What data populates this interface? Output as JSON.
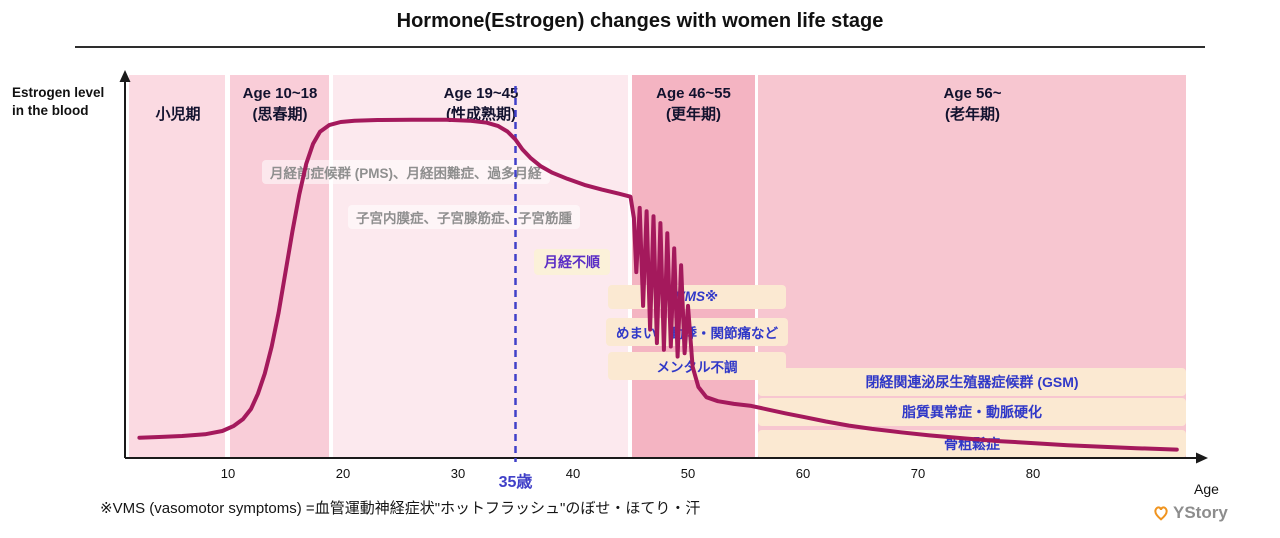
{
  "footnote": "※VMS (vasomotor symptoms) =血管運動神経症状\"ホットフラッシュ\"のぼせ・ほてり・汗",
  "logo": {
    "text": "YStory",
    "icon": "heart-icon",
    "color": "#F0941F",
    "text_color": "#8D8D8D"
  },
  "chart_data": {
    "type": "line",
    "title": "Hormone(Estrogen) changes with women life stage",
    "xlabel": "Age",
    "ylabel": "Estrogen level in the blood",
    "ylabel_lines": [
      "Estrogen level",
      "in the blood"
    ],
    "x_ticks": [
      10,
      20,
      30,
      40,
      50,
      60,
      70,
      80
    ],
    "x_range": [
      0,
      93
    ],
    "grid": false,
    "curve_color": "#A4195C",
    "marker": {
      "age": 35,
      "label": "35歳",
      "color": "#4040C8"
    },
    "stages": [
      {
        "label": "小児期",
        "sublabel": "",
        "age_range": [
          0,
          10
        ],
        "band_color": "#FBDAE2"
      },
      {
        "label": "Age 10~18",
        "sublabel": "(思春期)",
        "age_range": [
          10,
          18
        ],
        "band_color": "#F9CDD8"
      },
      {
        "label": "Age 19~45",
        "sublabel": "(性成熟期)",
        "age_range": [
          19,
          45
        ],
        "band_color": "#FCE9EE"
      },
      {
        "label": "Age 46~55",
        "sublabel": "(更年期)",
        "age_range": [
          46,
          55
        ],
        "band_color": "#F4B4C2"
      },
      {
        "label": "Age 56~",
        "sublabel": "(老年期)",
        "age_range": [
          56,
          93
        ],
        "band_color": "#F7C6D0"
      }
    ],
    "series": [
      {
        "name": "Estrogen level in the blood",
        "unit": "relative level (0-100, est.)",
        "points": [
          [
            2.3,
            6
          ],
          [
            4,
            6.2
          ],
          [
            6,
            6.5
          ],
          [
            8,
            7
          ],
          [
            9.5,
            8
          ],
          [
            10.5,
            9.5
          ],
          [
            11.3,
            11.5
          ],
          [
            12,
            14.5
          ],
          [
            12.6,
            19
          ],
          [
            13.2,
            25
          ],
          [
            13.8,
            33
          ],
          [
            14.4,
            43
          ],
          [
            15,
            55
          ],
          [
            15.6,
            67
          ],
          [
            16.2,
            78
          ],
          [
            16.8,
            87
          ],
          [
            17.4,
            93
          ],
          [
            18,
            96.5
          ],
          [
            18.8,
            98.5
          ],
          [
            19.8,
            99.4
          ],
          [
            21,
            99.8
          ],
          [
            23,
            100
          ],
          [
            26,
            100.1
          ],
          [
            29,
            100.1
          ],
          [
            31,
            99.8
          ],
          [
            32.5,
            99.2
          ],
          [
            33.5,
            98.2
          ],
          [
            34.3,
            96.6
          ],
          [
            35,
            94.2
          ],
          [
            35.6,
            91.3
          ],
          [
            36.3,
            88.8
          ],
          [
            37.2,
            86.3
          ],
          [
            38.2,
            84.4
          ],
          [
            39.5,
            82.6
          ],
          [
            41,
            80.8
          ],
          [
            42.5,
            79.4
          ],
          [
            44,
            78.2
          ],
          [
            45,
            77.3
          ],
          [
            45.3,
            71
          ],
          [
            45.5,
            55
          ],
          [
            45.8,
            74
          ],
          [
            46.1,
            45
          ],
          [
            46.4,
            73
          ],
          [
            46.7,
            38
          ],
          [
            47,
            71.5
          ],
          [
            47.3,
            34
          ],
          [
            47.6,
            69.5
          ],
          [
            47.9,
            32
          ],
          [
            48.2,
            66.5
          ],
          [
            48.5,
            33
          ],
          [
            48.8,
            62
          ],
          [
            49.1,
            30
          ],
          [
            49.4,
            57
          ],
          [
            49.7,
            31
          ],
          [
            50,
            45
          ],
          [
            50.4,
            27
          ],
          [
            50.9,
            21
          ],
          [
            51.6,
            18
          ],
          [
            52.6,
            16.8
          ],
          [
            54,
            16
          ],
          [
            55.5,
            15.4
          ],
          [
            57,
            14.3
          ],
          [
            58.5,
            13.2
          ],
          [
            60,
            12.2
          ],
          [
            62,
            10.8
          ],
          [
            64,
            9.6
          ],
          [
            66,
            8.6
          ],
          [
            68.5,
            7.6
          ],
          [
            71,
            6.7
          ],
          [
            74,
            5.8
          ],
          [
            77,
            5
          ],
          [
            80,
            4.4
          ],
          [
            83,
            3.8
          ],
          [
            86,
            3.3
          ],
          [
            89,
            2.9
          ],
          [
            92.5,
            2.5
          ]
        ]
      }
    ],
    "annotations": [
      {
        "text": "月経前症候群 (PMS)、月経困難症、過多月経",
        "style": "gray",
        "color": "#8F8F8F",
        "bg": ""
      },
      {
        "text": "子宮内膜症、子宮腺筋症、子宮筋腫",
        "style": "gray",
        "color": "#8F8F8F",
        "bg": ""
      },
      {
        "text": "月経不順",
        "style": "yellow",
        "color": "#5B2EC6",
        "bg": "#FBF1D9"
      },
      {
        "text": "VMS※",
        "style": "orange",
        "color": "#3038C8",
        "bg": "#FBE9D2",
        "italic": true
      },
      {
        "text": "めまい・動悸・関節痛など",
        "style": "orange",
        "color": "#3038C8",
        "bg": "#FBE9D2"
      },
      {
        "text": "メンタル不調",
        "style": "orange",
        "color": "#3038C8",
        "bg": "#FBE9D2"
      },
      {
        "text": "閉経関連泌尿生殖器症候群 (GSM)",
        "style": "orange",
        "color": "#3038C8",
        "bg": "#FBE9D2"
      },
      {
        "text": "脂質異常症・動脈硬化",
        "style": "orange",
        "color": "#3038C8",
        "bg": "#FBE9D2"
      },
      {
        "text": "骨粗鬆症",
        "style": "orange",
        "color": "#3038C8",
        "bg": "#FBE9D2"
      }
    ]
  }
}
